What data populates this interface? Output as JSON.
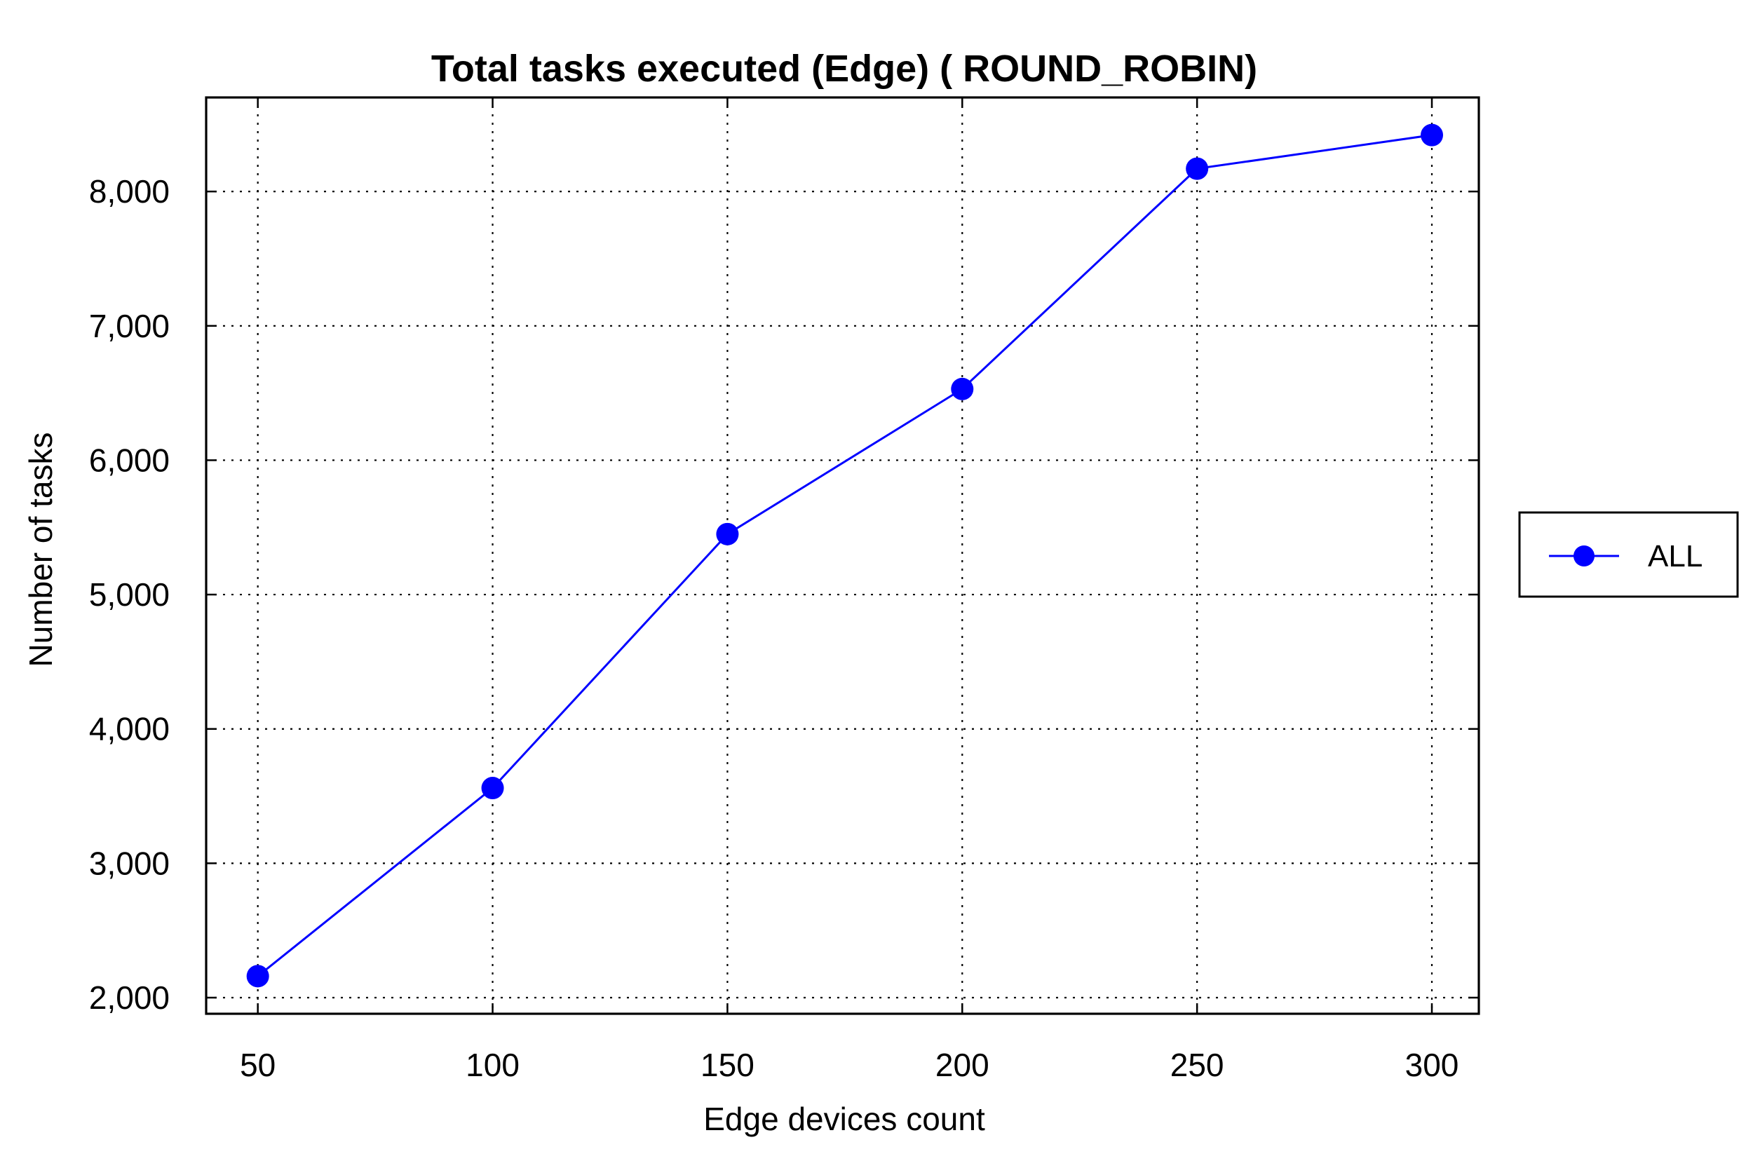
{
  "chart_data": {
    "type": "line",
    "title": "Total tasks executed (Edge) ( ROUND_ROBIN)",
    "xlabel": "Edge devices count",
    "ylabel": "Number of tasks",
    "x": [
      50,
      100,
      150,
      200,
      250,
      300
    ],
    "x_tick_labels": [
      "50",
      "100",
      "150",
      "200",
      "250",
      "300"
    ],
    "y_ticks": [
      2000,
      3000,
      4000,
      5000,
      6000,
      7000,
      8000
    ],
    "y_tick_labels": [
      "2,000",
      "3,000",
      "4,000",
      "5,000",
      "6,000",
      "7,000",
      "8,000"
    ],
    "xlim": [
      39,
      310
    ],
    "ylim": [
      1880,
      8700
    ],
    "grid": true,
    "legend_position": "right",
    "series": [
      {
        "name": "ALL",
        "color": "#0000ff",
        "marker": "circle",
        "values": [
          2160,
          3560,
          5450,
          6530,
          8170,
          8420
        ]
      }
    ]
  }
}
